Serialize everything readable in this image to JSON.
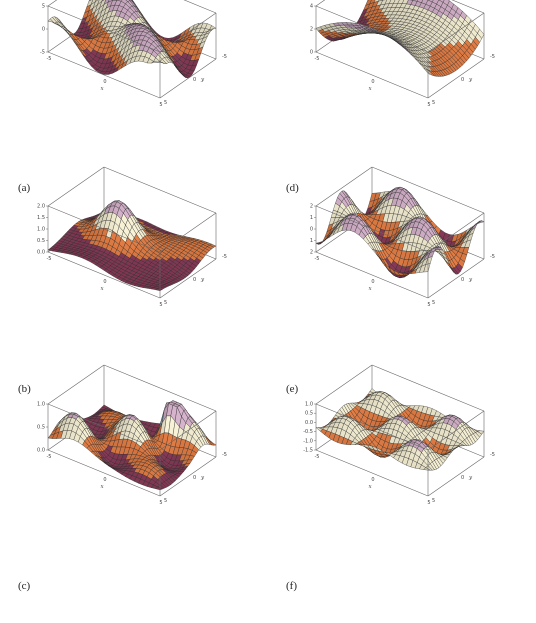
{
  "figure": {
    "panels": [
      {
        "id": "a",
        "caption": "(a)",
        "surface": "oblique-ridges",
        "zticks": [
          "5",
          "0",
          "-5"
        ],
        "zlim": [
          -5,
          5
        ]
      },
      {
        "id": "b",
        "caption": "(b)",
        "surface": "single-bump",
        "zticks": [
          "2.0",
          "1.5",
          "1.0",
          "0.5",
          "0.0"
        ],
        "zlim": [
          0,
          2
        ]
      },
      {
        "id": "c",
        "caption": "(c)",
        "surface": "diagonal-ridge-spike",
        "zticks": [
          "1.0",
          "0.5",
          "0.0"
        ],
        "zlim": [
          0,
          1
        ]
      },
      {
        "id": "d",
        "caption": "(d)",
        "surface": "saddle",
        "zticks": [
          "4",
          "2",
          "0"
        ],
        "zlim": [
          0,
          4
        ]
      },
      {
        "id": "e",
        "caption": "(e)",
        "surface": "sine-waves",
        "zticks": [
          "2",
          "1",
          "0",
          "1",
          "2"
        ],
        "zlim": [
          -2,
          2
        ]
      },
      {
        "id": "f",
        "caption": "(f)",
        "surface": "egg-crate",
        "zticks": [
          "1.0",
          "0.5",
          "0.0",
          "-0.5",
          "-1.0",
          "-1.5"
        ],
        "zlim": [
          -1.5,
          1
        ]
      }
    ],
    "axis_ticks": {
      "low": "-5",
      "mid": "0",
      "high": "5"
    },
    "x_label": "x",
    "y_label": "y"
  },
  "chart_data": [
    {
      "type": "surface",
      "panel": "a",
      "x_range": [
        -5,
        5
      ],
      "y_range": [
        -5,
        5
      ],
      "z_range": [
        -5,
        5
      ]
    },
    {
      "type": "surface",
      "panel": "b",
      "x_range": [
        -5,
        5
      ],
      "y_range": [
        -5,
        5
      ],
      "z_range": [
        0,
        2
      ]
    },
    {
      "type": "surface",
      "panel": "c",
      "x_range": [
        -5,
        5
      ],
      "y_range": [
        -5,
        5
      ],
      "z_range": [
        0,
        1
      ]
    },
    {
      "type": "surface",
      "panel": "d",
      "x_range": [
        -5,
        5
      ],
      "y_range": [
        -5,
        5
      ],
      "z_range": [
        0,
        4
      ]
    },
    {
      "type": "surface",
      "panel": "e",
      "x_range": [
        -5,
        5
      ],
      "y_range": [
        -5,
        5
      ],
      "z_range": [
        -2,
        2
      ]
    },
    {
      "type": "surface",
      "panel": "f",
      "x_range": [
        -5,
        5
      ],
      "y_range": [
        -5,
        5
      ],
      "z_range": [
        -1.5,
        1
      ]
    }
  ]
}
